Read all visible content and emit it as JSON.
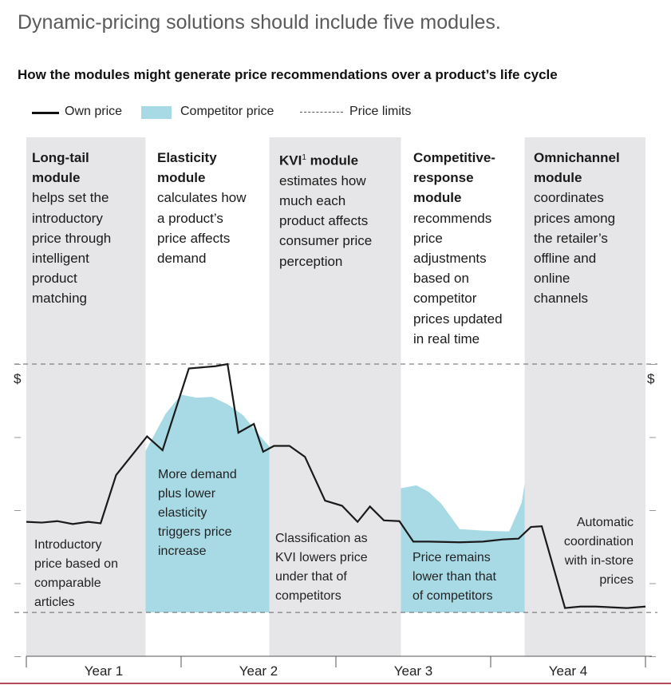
{
  "headline": "Dynamic-pricing solutions should include five modules.",
  "subtitle": "How the modules might generate price recommendations over a product’s life cycle",
  "legend": {
    "own_price": "Own price",
    "competitor_price": "Competitor price",
    "price_limits": "Price limits"
  },
  "modules": [
    {
      "name": "Long-tail module",
      "name_lines": [
        "Long-tail",
        "module"
      ],
      "desc_lines": [
        "helps set the",
        "introductory",
        "price through",
        "intelligent",
        "product",
        "matching"
      ]
    },
    {
      "name": "Elasticity module",
      "name_lines": [
        "Elasticity",
        "module"
      ],
      "desc_lines": [
        "calculates how",
        "a product’s",
        "price affects",
        "demand"
      ]
    },
    {
      "name": "KVI module",
      "name_lines": [
        "KVI"
      ],
      "name_suffix": " module",
      "footnote": "1",
      "desc_lines": [
        "estimates how",
        "much each",
        "product affects",
        "consumer price",
        "perception"
      ]
    },
    {
      "name": "Competitive-response module",
      "name_lines": [
        "Competitive-",
        "response",
        "module"
      ],
      "desc_lines": [
        "recommends",
        "price",
        "adjustments",
        "based on",
        "competitor",
        "prices updated",
        "in real time"
      ]
    },
    {
      "name": "Omnichannel module",
      "name_lines": [
        "Omnichannel",
        "module"
      ],
      "desc_lines": [
        "coordinates",
        "prices among",
        "the retailer’s",
        "offline and",
        "online",
        "channels"
      ]
    }
  ],
  "annotations": [
    {
      "lines": [
        "Introductory",
        "price based on",
        "comparable",
        "articles"
      ]
    },
    {
      "lines": [
        "More demand",
        "plus lower",
        "elasticity",
        "triggers price",
        "increase"
      ]
    },
    {
      "lines": [
        "Classification as",
        "KVI lowers price",
        "under that of",
        "competitors"
      ]
    },
    {
      "lines": [
        "Price remains",
        "lower than that",
        "of competitors"
      ]
    },
    {
      "lines": [
        "Automatic",
        "coordination",
        "with in-store",
        "prices"
      ]
    }
  ],
  "chart_data": {
    "type": "line",
    "x_unit": "year",
    "xlim": [
      0,
      4
    ],
    "ylim": [
      0,
      4
    ],
    "y_tick_values": [
      0,
      1,
      2,
      3,
      4
    ],
    "y_label_left": "$",
    "y_label_right": "$",
    "x_categories": [
      "Year 1",
      "Year 2",
      "Year 3",
      "Year 4"
    ],
    "price_limits": {
      "upper": 4,
      "lower": 0.6
    },
    "module_bands": [
      {
        "module": "Long-tail module",
        "range": [
          0,
          0.77
        ],
        "shaded": true
      },
      {
        "module": "Elasticity module",
        "range": [
          0.77,
          1.57
        ],
        "shaded": false
      },
      {
        "module": "KVI module",
        "range": [
          1.57,
          2.42
        ],
        "shaded": true
      },
      {
        "module": "Competitive-response module",
        "range": [
          2.42,
          3.22
        ],
        "shaded": false
      },
      {
        "module": "Omnichannel module",
        "range": [
          3.22,
          4.0
        ],
        "shaded": true
      }
    ],
    "series": [
      {
        "name": "Own price",
        "style": "solid-line",
        "color": "#1a1a1a",
        "x": [
          0.0,
          0.1,
          0.2,
          0.3,
          0.4,
          0.48,
          0.58,
          0.78,
          0.88,
          1.05,
          1.22,
          1.3,
          1.37,
          1.47,
          1.53,
          1.6,
          1.7,
          1.8,
          1.93,
          2.04,
          2.14,
          2.22,
          2.31,
          2.41,
          2.5,
          2.6,
          2.8,
          2.95,
          3.08,
          3.18,
          3.26,
          3.33,
          3.48,
          3.58,
          3.68,
          3.88,
          4.0
        ],
        "y": [
          1.84,
          1.83,
          1.85,
          1.81,
          1.84,
          1.82,
          2.48,
          3.01,
          2.82,
          3.94,
          3.97,
          4.0,
          3.06,
          3.18,
          2.8,
          2.88,
          2.88,
          2.73,
          2.13,
          2.06,
          1.84,
          2.05,
          1.86,
          1.85,
          1.57,
          1.57,
          1.56,
          1.57,
          1.6,
          1.61,
          1.77,
          1.78,
          0.66,
          0.68,
          0.68,
          0.66,
          0.68
        ]
      },
      {
        "name": "Competitor price",
        "style": "filled-area",
        "color": "#a8dae6",
        "segments": [
          {
            "x": [
              0.77,
              0.9,
              1.0,
              1.1,
              1.2,
              1.3,
              1.4,
              1.5,
              1.57
            ],
            "y": [
              2.81,
              3.32,
              3.58,
              3.54,
              3.55,
              3.45,
              3.3,
              3.04,
              2.87
            ]
          },
          {
            "x": [
              2.42,
              2.52,
              2.6,
              2.68,
              2.8,
              2.95,
              3.08,
              3.12,
              3.2,
              3.22
            ],
            "y": [
              2.3,
              2.34,
              2.25,
              2.09,
              1.74,
              1.72,
              1.71,
              1.71,
              2.1,
              2.37
            ]
          }
        ]
      }
    ]
  }
}
